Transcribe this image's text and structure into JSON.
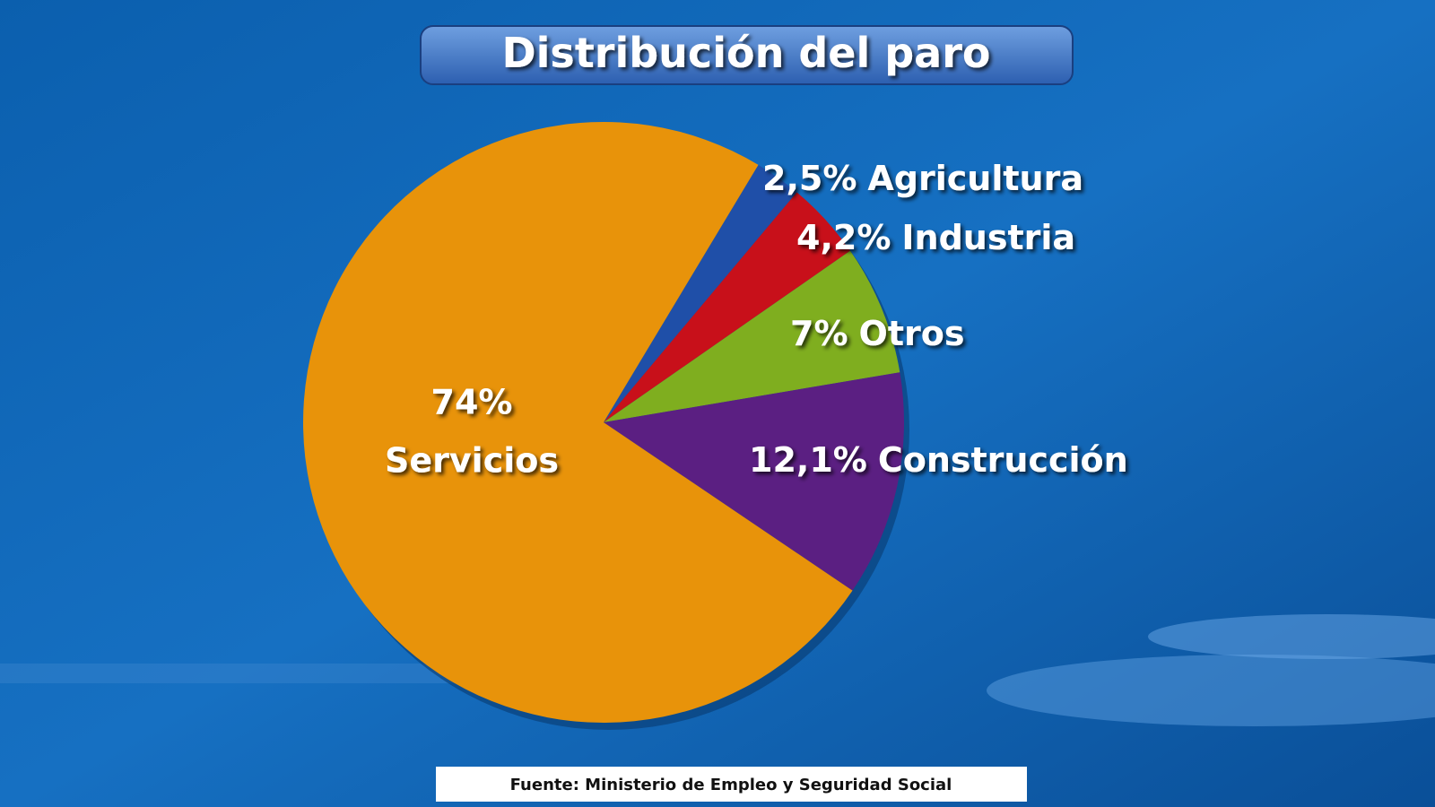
{
  "chart_data": {
    "type": "pie",
    "title": "Distribución del paro",
    "source": "Fuente: Ministerio de Empleo y Seguridad Social",
    "categories": [
      "Agricultura",
      "Industria",
      "Otros",
      "Construcción",
      "Servicios"
    ],
    "values": [
      2.5,
      4.2,
      7,
      12.1,
      74
    ],
    "value_labels": [
      "2,5%",
      "4,2%",
      "7%",
      "12,1%",
      "74%"
    ],
    "colors": [
      "#1f4fa8",
      "#c8101a",
      "#7fae1f",
      "#5b1f82",
      "#e8930a"
    ]
  }
}
